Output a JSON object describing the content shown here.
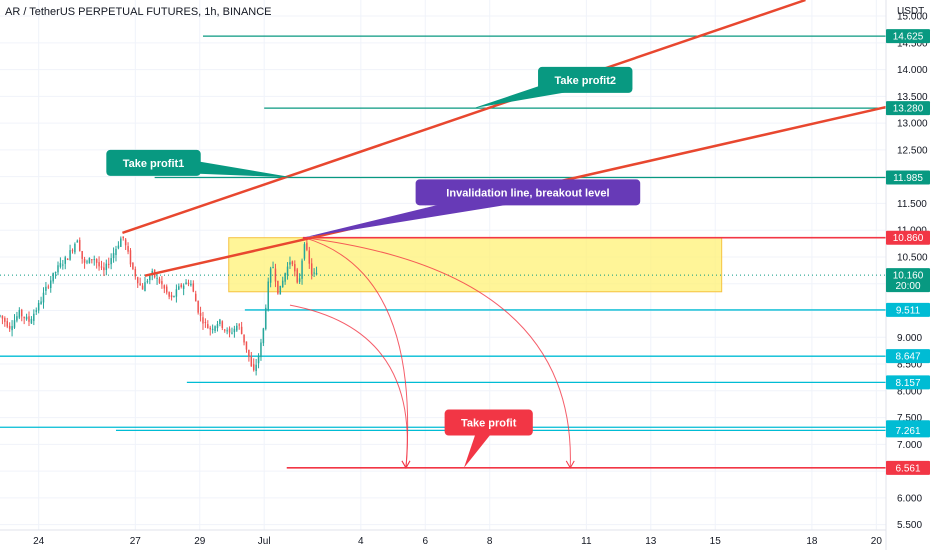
{
  "header": {
    "title": "AR / TetherUS PERPETUAL FUTURES, 1h, BINANCE"
  },
  "colors": {
    "teal": "#089981",
    "cyan": "#00bcd4",
    "red": "#f23645",
    "trend": "#e8472f",
    "purple": "#673ab7",
    "zone_fill": "#fff176",
    "zone_border": "#f5c242",
    "candle_up": "#26a69a",
    "candle_down": "#ef5350",
    "grid": "#f0f3fa"
  },
  "chart_data": {
    "type": "candlestick",
    "title": "AR / TetherUS PERPETUAL FUTURES, 1h, BINANCE",
    "y_axis": {
      "unit_label": "USDT",
      "ticks": [
        "15.000",
        "14.500",
        "14.000",
        "13.500",
        "13.000",
        "12.500",
        "12.000",
        "11.500",
        "11.000",
        "10.500",
        "10.000",
        "9.500",
        "9.000",
        "8.500",
        "8.000",
        "7.500",
        "7.000",
        "6.500",
        "6.000",
        "5.500"
      ],
      "range": [
        5.4,
        15.3
      ]
    },
    "x_axis": {
      "ticks": [
        {
          "label": "24",
          "day": 0
        },
        {
          "label": "27",
          "day": 3
        },
        {
          "label": "29",
          "day": 5
        },
        {
          "label": "Jul",
          "day": 7
        },
        {
          "label": "4",
          "day": 10
        },
        {
          "label": "6",
          "day": 12
        },
        {
          "label": "8",
          "day": 14
        },
        {
          "label": "11",
          "day": 17
        },
        {
          "label": "13",
          "day": 19
        },
        {
          "label": "15",
          "day": 21
        },
        {
          "label": "18",
          "day": 24
        },
        {
          "label": "20",
          "day": 26
        }
      ],
      "range": [
        -1.2,
        26.3
      ]
    },
    "price_path": [
      {
        "day": -1.2,
        "price": 9.4
      },
      {
        "day": -0.9,
        "price": 9.2
      },
      {
        "day": -0.6,
        "price": 9.45
      },
      {
        "day": -0.3,
        "price": 9.3
      },
      {
        "day": 0.0,
        "price": 9.6
      },
      {
        "day": 0.3,
        "price": 10.0
      },
      {
        "day": 0.6,
        "price": 10.3
      },
      {
        "day": 0.9,
        "price": 10.5
      },
      {
        "day": 1.2,
        "price": 10.85
      },
      {
        "day": 1.4,
        "price": 10.35
      },
      {
        "day": 1.7,
        "price": 10.5
      },
      {
        "day": 2.0,
        "price": 10.2
      },
      {
        "day": 2.3,
        "price": 10.55
      },
      {
        "day": 2.6,
        "price": 10.9
      },
      {
        "day": 2.9,
        "price": 10.3
      },
      {
        "day": 3.2,
        "price": 9.9
      },
      {
        "day": 3.5,
        "price": 10.2
      },
      {
        "day": 3.8,
        "price": 10.0
      },
      {
        "day": 4.1,
        "price": 9.7
      },
      {
        "day": 4.4,
        "price": 9.95
      },
      {
        "day": 4.7,
        "price": 10.05
      },
      {
        "day": 5.0,
        "price": 9.4
      },
      {
        "day": 5.3,
        "price": 9.15
      },
      {
        "day": 5.6,
        "price": 9.3
      },
      {
        "day": 5.9,
        "price": 9.05
      },
      {
        "day": 6.2,
        "price": 9.25
      },
      {
        "day": 6.5,
        "price": 8.7
      },
      {
        "day": 6.65,
        "price": 8.3
      },
      {
        "day": 6.8,
        "price": 8.6
      },
      {
        "day": 6.95,
        "price": 9.0
      },
      {
        "day": 7.1,
        "price": 9.9
      },
      {
        "day": 7.25,
        "price": 10.4
      },
      {
        "day": 7.45,
        "price": 9.8
      },
      {
        "day": 7.65,
        "price": 10.2
      },
      {
        "day": 7.85,
        "price": 10.5
      },
      {
        "day": 8.05,
        "price": 9.9
      },
      {
        "day": 8.25,
        "price": 10.8
      },
      {
        "day": 8.45,
        "price": 10.2
      },
      {
        "day": 8.65,
        "price": 10.16
      }
    ],
    "horizontal_levels": [
      {
        "price": 14.625,
        "label": "14.625",
        "color": "#089981",
        "from_day": 5.1
      },
      {
        "price": 13.28,
        "label": "13.280",
        "color": "#089981",
        "from_day": 7.0
      },
      {
        "price": 11.985,
        "label": "11.985",
        "color": "#089981",
        "from_day": 3.6
      },
      {
        "price": 10.86,
        "label": "10.860",
        "color": "#f23645",
        "from_day": 8.2
      },
      {
        "price": 9.511,
        "label": "9.511",
        "color": "#00bcd4",
        "from_day": 6.4
      },
      {
        "price": 8.647,
        "label": "8.647",
        "color": "#00bcd4",
        "from_day": -1.2
      },
      {
        "price": 8.157,
        "label": "8.157",
        "color": "#00bcd4",
        "from_day": 4.6
      },
      {
        "price": 7.319,
        "label": "7.319",
        "color": "#00bcd4",
        "from_day": -1.2
      },
      {
        "price": 7.261,
        "label": "7.261",
        "color": "#00bcd4",
        "from_day": 2.4
      },
      {
        "price": 6.561,
        "label": "6.561",
        "color": "#f23645",
        "from_day": 7.7
      }
    ],
    "last_price": {
      "price": 10.16,
      "label": "10.160",
      "time_label": "20:00"
    },
    "trendlines": [
      {
        "from": {
          "day": 2.6,
          "price": 10.95
        },
        "to": {
          "day": 23.8,
          "price": 15.3
        }
      },
      {
        "from": {
          "day": 3.3,
          "price": 10.15
        },
        "to": {
          "day": 26.3,
          "price": 13.3
        }
      }
    ],
    "zone": {
      "from_day": 5.9,
      "to_day": 21.2,
      "top": 10.86,
      "bottom": 9.85
    },
    "projection_arcs": [
      {
        "from": {
          "day": 8.25,
          "price": 10.86
        },
        "to": {
          "day": 11.4,
          "price": 6.561
        }
      },
      {
        "from": {
          "day": 8.25,
          "price": 10.86
        },
        "to": {
          "day": 16.5,
          "price": 6.561
        }
      },
      {
        "from": {
          "day": 7.8,
          "price": 9.6
        },
        "to": {
          "day": 11.4,
          "price": 6.561
        }
      }
    ],
    "annotations": [
      {
        "text": "Take profit2",
        "color": "#089981",
        "box": {
          "day": 15.5,
          "price": 14.05
        },
        "tip": {
          "day": 13.5,
          "price": 13.28
        }
      },
      {
        "text": "Take profit1",
        "color": "#089981",
        "box": {
          "day": 2.1,
          "price": 12.5
        },
        "tip": {
          "day": 7.9,
          "price": 11.985
        }
      },
      {
        "text": "Invalidation line, breakout level",
        "color": "#673ab7",
        "box": {
          "day": 11.7,
          "price": 11.95
        },
        "tip": {
          "day": 8.2,
          "price": 10.86
        }
      },
      {
        "text": "Take profit",
        "color": "#f23645",
        "box": {
          "day": 12.6,
          "price": 7.65
        },
        "tip": {
          "day": 13.2,
          "price": 6.561
        }
      }
    ]
  }
}
